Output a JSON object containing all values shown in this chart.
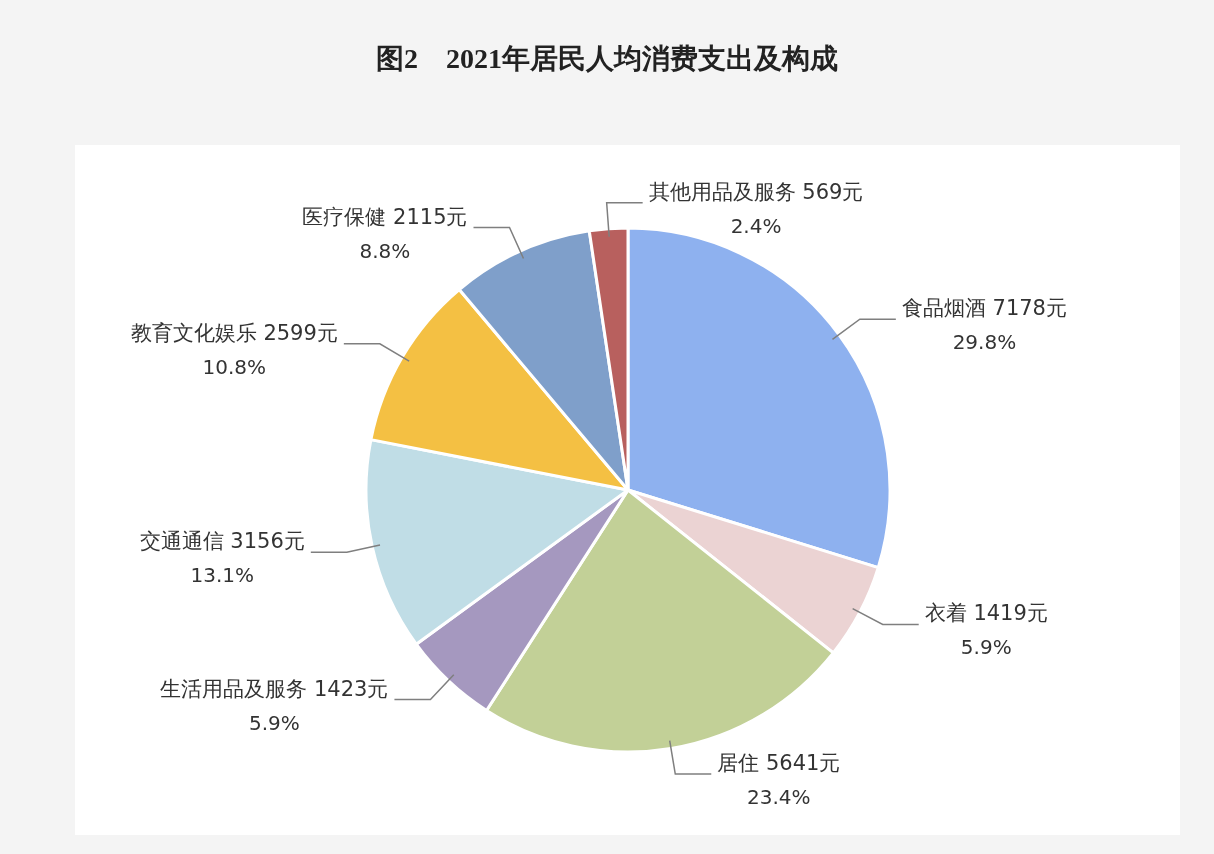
{
  "chart_data": {
    "type": "pie",
    "title": "图2　2021年居民人均消费支出及构成",
    "categories": [
      "食品烟酒",
      "衣着",
      "居住",
      "生活用品及服务",
      "交通通信",
      "教育文化娱乐",
      "医疗保健",
      "其他用品及服务"
    ],
    "values": [
      7178,
      1419,
      5641,
      1423,
      3156,
      2599,
      2115,
      569
    ],
    "value_labels": [
      "7178元\n29.8%",
      "1419元\n5.9%",
      "5641元\n23.4%",
      "1423元\n5.9%",
      "3156元\n13.1%",
      "2599元\n10.8%",
      "2115元\n8.8%",
      "569元\n2.4%"
    ],
    "colors": [
      "#8eb1ef",
      "#ebd3d3",
      "#c2d097",
      "#a598bf",
      "#c0dde6",
      "#f4c043",
      "#7f9fca",
      "#b8605e"
    ]
  }
}
